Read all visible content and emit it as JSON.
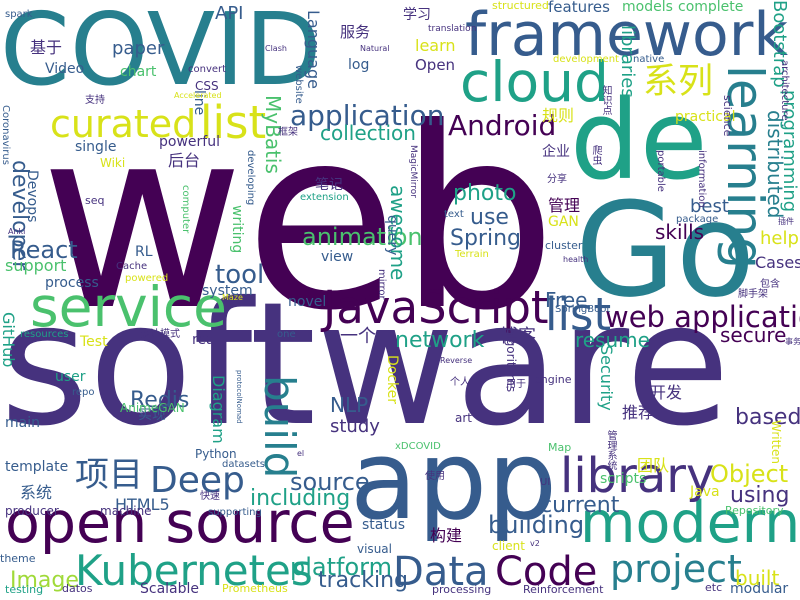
{
  "palette": {
    "purple": "#46327e",
    "dark_purple": "#440154",
    "blue": "#365c8d",
    "teal": "#277f8e",
    "green": "#1fa187",
    "light_green": "#4ac16d",
    "lime": "#a0da39",
    "yellow": "#d8e219"
  },
  "words": [
    {
      "text": "web",
      "color": "#440154"
    },
    {
      "text": "software",
      "color": "#46327e"
    },
    {
      "text": "Go",
      "color": "#277f8e"
    },
    {
      "text": "COVID",
      "color": "#277f8e"
    },
    {
      "text": "app",
      "color": "#365c8d"
    },
    {
      "text": "de",
      "color": "#1fa187"
    },
    {
      "text": "framework",
      "color": "#365c8d"
    },
    {
      "text": "open source",
      "color": "#440154"
    },
    {
      "text": "service",
      "color": "#4ac16d"
    },
    {
      "text": "modern",
      "color": "#1fa187"
    },
    {
      "text": "JavaScript",
      "color": "#440154"
    },
    {
      "text": "cloud",
      "color": "#1fa187"
    },
    {
      "text": "learning",
      "color": "#277f8e"
    },
    {
      "text": "library",
      "color": "#46327e"
    },
    {
      "text": "Kubernetes",
      "color": "#1fa187"
    },
    {
      "text": "list",
      "color": "#d8e219"
    },
    {
      "text": "list",
      "color": "#365c8d"
    },
    {
      "text": "curated",
      "color": "#d8e219"
    },
    {
      "text": "Data",
      "color": "#365c8d"
    },
    {
      "text": "Code",
      "color": "#440154"
    },
    {
      "text": "project",
      "color": "#277f8e"
    },
    {
      "text": "build",
      "color": "#277f8e"
    },
    {
      "text": "项目",
      "color": "#365c8d"
    },
    {
      "text": "Deep",
      "color": "#365c8d"
    },
    {
      "text": "web application",
      "color": "#440154"
    },
    {
      "text": "系列",
      "color": "#d8e219"
    },
    {
      "text": "Android",
      "color": "#440154"
    },
    {
      "text": "application",
      "color": "#365c8d"
    },
    {
      "text": "source",
      "color": "#365c8d"
    },
    {
      "text": "building",
      "color": "#365c8d"
    },
    {
      "text": "animation",
      "color": "#4ac16d"
    },
    {
      "text": "collection",
      "color": "#1fa187"
    },
    {
      "text": "photo",
      "color": "#1fa187"
    },
    {
      "text": "Spring",
      "color": "#365c8d"
    },
    {
      "text": "React",
      "color": "#365c8d"
    },
    {
      "text": "developer",
      "color": "#365c8d"
    },
    {
      "text": "tool",
      "color": "#365c8d"
    },
    {
      "text": "platform",
      "color": "#1fa187"
    },
    {
      "text": "tracking",
      "color": "#365c8d"
    },
    {
      "text": "network",
      "color": "#1fa187"
    },
    {
      "text": "resume",
      "color": "#1fa187"
    },
    {
      "text": "secure",
      "color": "#440154"
    },
    {
      "text": "Object",
      "color": "#d8e219"
    },
    {
      "text": "using",
      "color": "#46327e"
    },
    {
      "text": "current",
      "color": "#365c8d"
    },
    {
      "text": "including",
      "color": "#1fa187"
    },
    {
      "text": "based",
      "color": "#46327e"
    },
    {
      "text": "built",
      "color": "#d8e219"
    },
    {
      "text": "modular",
      "color": "#365c8d"
    },
    {
      "text": "Image",
      "color": "#a0da39"
    },
    {
      "text": "Redis",
      "color": "#365c8d"
    },
    {
      "text": "NLP",
      "color": "#365c8d"
    },
    {
      "text": "study",
      "color": "#46327e"
    },
    {
      "text": "MyBatis",
      "color": "#4ac16d"
    },
    {
      "text": "awesome",
      "color": "#1fa187"
    },
    {
      "text": "use",
      "color": "#365c8d"
    },
    {
      "text": "skills",
      "color": "#440154"
    },
    {
      "text": "Free",
      "color": "#365c8d"
    },
    {
      "text": "help",
      "color": "#d8e219"
    },
    {
      "text": "Cases",
      "color": "#46327e"
    },
    {
      "text": "best",
      "color": "#365c8d"
    },
    {
      "text": "distributed",
      "color": "#277f8e"
    },
    {
      "text": "programming",
      "color": "#1fa187"
    },
    {
      "text": "Bootstrap",
      "color": "#1fa187"
    },
    {
      "text": "libraries",
      "color": "#1fa187"
    },
    {
      "text": "博客",
      "color": "#46327e"
    },
    {
      "text": "一个",
      "color": "#46327e"
    },
    {
      "text": "paper",
      "color": "#365c8d"
    },
    {
      "text": "API",
      "color": "#365c8d"
    },
    {
      "text": "Language",
      "color": "#365c8d"
    },
    {
      "text": "服务",
      "color": "#46327e"
    },
    {
      "text": "学习",
      "color": "#46327e"
    },
    {
      "text": "learn",
      "color": "#d8e219"
    },
    {
      "text": "Open",
      "color": "#46327e"
    },
    {
      "text": "features",
      "color": "#365c8d"
    },
    {
      "text": "models",
      "color": "#4ac16d"
    },
    {
      "text": "complete",
      "color": "#4ac16d"
    },
    {
      "text": "基于",
      "color": "#46327e"
    },
    {
      "text": "Video",
      "color": "#365c8d"
    },
    {
      "text": "chart",
      "color": "#4ac16d"
    },
    {
      "text": "Scalable",
      "color": "#46327e"
    },
    {
      "text": "Docker",
      "color": "#d8e219"
    },
    {
      "text": "Diagram",
      "color": "#1fa187"
    },
    {
      "text": "support",
      "color": "#4ac16d"
    },
    {
      "text": "process",
      "color": "#365c8d"
    },
    {
      "text": "status",
      "color": "#365c8d"
    },
    {
      "text": "Security",
      "color": "#1fa187"
    },
    {
      "text": "Java",
      "color": "#d8e219"
    },
    {
      "text": "HTML5",
      "color": "#365c8d"
    },
    {
      "text": "系统",
      "color": "#365c8d"
    },
    {
      "text": "构建",
      "color": "#440154"
    },
    {
      "text": "团队",
      "color": "#d8e219"
    },
    {
      "text": "推荐",
      "color": "#46327e"
    },
    {
      "text": "开发",
      "color": "#46327e"
    },
    {
      "text": "管理",
      "color": "#440154"
    },
    {
      "text": "规则",
      "color": "#d8e219"
    },
    {
      "text": "企业",
      "color": "#46327e"
    },
    {
      "text": "实现",
      "color": "#365c8d"
    },
    {
      "text": "后台",
      "color": "#46327e"
    },
    {
      "text": "笔记",
      "color": "#46327e"
    },
    {
      "text": "scripts",
      "color": "#4ac16d"
    },
    {
      "text": "GitHub",
      "color": "#1fa187"
    },
    {
      "text": "Devops",
      "color": "#365c8d"
    },
    {
      "text": "single",
      "color": "#365c8d"
    },
    {
      "text": "log",
      "color": "#365c8d"
    },
    {
      "text": "view",
      "color": "#365c8d"
    },
    {
      "text": "query",
      "color": "#365c8d"
    },
    {
      "text": "system",
      "color": "#365c8d"
    },
    {
      "text": "writing",
      "color": "#4ac16d"
    },
    {
      "text": "real",
      "color": "#46327e"
    },
    {
      "text": "Test",
      "color": "#d8e219"
    },
    {
      "text": "user",
      "color": "#1fa187"
    },
    {
      "text": "main",
      "color": "#365c8d"
    },
    {
      "text": "template",
      "color": "#365c8d"
    },
    {
      "text": "RL",
      "color": "#365c8d"
    },
    {
      "text": "GAN",
      "color": "#d8e219"
    },
    {
      "text": "practical",
      "color": "#d8e219"
    },
    {
      "text": "powerful",
      "color": "#46327e"
    },
    {
      "text": "novel",
      "color": "#365c8d"
    },
    {
      "text": "line",
      "color": "#365c8d"
    },
    {
      "text": "CSS",
      "color": "#46327e"
    },
    {
      "text": "Wiki",
      "color": "#d8e219"
    },
    {
      "text": "client",
      "color": "#d8e219"
    },
    {
      "text": "visual",
      "color": "#365c8d"
    },
    {
      "text": "theme",
      "color": "#365c8d"
    },
    {
      "text": "testing",
      "color": "#1fa187"
    },
    {
      "text": "datos",
      "color": "#46327e"
    },
    {
      "text": "Prometheus",
      "color": "#d8e219"
    },
    {
      "text": "processing",
      "color": "#46327e"
    },
    {
      "text": "Reinforcement",
      "color": "#46327e"
    },
    {
      "text": "etc",
      "color": "#46327e"
    },
    {
      "text": "machine",
      "color": "#46327e"
    },
    {
      "text": "producer",
      "color": "#46327e"
    },
    {
      "text": "Python",
      "color": "#365c8d"
    },
    {
      "text": "datasets",
      "color": "#365c8d"
    },
    {
      "text": "AnimeGAN",
      "color": "#4ac16d"
    },
    {
      "text": "repo",
      "color": "#365c8d"
    },
    {
      "text": "resources",
      "color": "#1fa187"
    },
    {
      "text": "Map",
      "color": "#4ac16d"
    },
    {
      "text": "art",
      "color": "#46327e"
    },
    {
      "text": "Repository",
      "color": "#4ac16d"
    },
    {
      "text": "Written",
      "color": "#d8e219"
    },
    {
      "text": "engine",
      "color": "#46327e"
    },
    {
      "text": "algorithms",
      "color": "#46327e"
    },
    {
      "text": "translation",
      "color": "#46327e"
    },
    {
      "text": "structured",
      "color": "#d8e219"
    },
    {
      "text": "development",
      "color": "#d8e219"
    },
    {
      "text": "native",
      "color": "#365c8d"
    },
    {
      "text": "science",
      "color": "#46327e"
    },
    {
      "text": "architecture",
      "color": "#46327e"
    },
    {
      "text": "information",
      "color": "#46327e"
    },
    {
      "text": "portable",
      "color": "#46327e"
    },
    {
      "text": "package",
      "color": "#365c8d"
    },
    {
      "text": "cluster",
      "color": "#365c8d"
    },
    {
      "text": "health",
      "color": "#46327e"
    },
    {
      "text": "Terrain",
      "color": "#d8e219"
    },
    {
      "text": "SpringBoot",
      "color": "#365c8d"
    },
    {
      "text": "text",
      "color": "#365c8d"
    },
    {
      "text": "MagicMirror",
      "color": "#46327e"
    },
    {
      "text": "extension",
      "color": "#1fa187"
    },
    {
      "text": "computer",
      "color": "#4ac16d"
    },
    {
      "text": "developing",
      "color": "#365c8d"
    },
    {
      "text": "website",
      "color": "#365c8d"
    },
    {
      "text": "convert",
      "color": "#46327e"
    },
    {
      "text": "spark",
      "color": "#365c8d"
    },
    {
      "text": "Clash",
      "color": "#46327e"
    },
    {
      "text": "Natural",
      "color": "#46327e"
    },
    {
      "text": "Coronavirus",
      "color": "#365c8d"
    },
    {
      "text": "支持",
      "color": "#46327e"
    },
    {
      "text": "Accelerated",
      "color": "#d8e219"
    },
    {
      "text": "seq",
      "color": "#46327e"
    },
    {
      "text": "powered",
      "color": "#d8e219"
    },
    {
      "text": "Cache",
      "color": "#46327e"
    },
    {
      "text": "Maze",
      "color": "#d8e219"
    },
    {
      "text": "one",
      "color": "#365c8d"
    },
    {
      "text": "mirror",
      "color": "#46327e"
    },
    {
      "text": "Reverse",
      "color": "#46327e"
    },
    {
      "text": "分享",
      "color": "#46327e"
    },
    {
      "text": "爬虫",
      "color": "#46327e"
    },
    {
      "text": "知识点",
      "color": "#46327e"
    },
    {
      "text": "包含",
      "color": "#46327e"
    },
    {
      "text": "用于",
      "color": "#46327e"
    },
    {
      "text": "个人",
      "color": "#46327e"
    },
    {
      "text": "使用",
      "color": "#46327e"
    },
    {
      "text": "快速",
      "color": "#46327e"
    },
    {
      "text": "管理系统",
      "color": "#46327e"
    },
    {
      "text": "脚手架",
      "color": "#46327e"
    },
    {
      "text": "事务",
      "color": "#46327e"
    },
    {
      "text": "设计模式",
      "color": "#46327e"
    },
    {
      "text": "框架",
      "color": "#46327e"
    },
    {
      "text": "xDCOVID",
      "color": "#4ac16d"
    },
    {
      "text": "protocolNomad",
      "color": "#365c8d"
    },
    {
      "text": "supporting",
      "color": "#365c8d"
    },
    {
      "text": "UI",
      "color": "#46327e"
    },
    {
      "text": "el",
      "color": "#46327e"
    },
    {
      "text": "v2",
      "color": "#46327e"
    },
    {
      "text": "Anki",
      "color": "#46327e"
    },
    {
      "text": "插件",
      "color": "#46327e"
    }
  ]
}
